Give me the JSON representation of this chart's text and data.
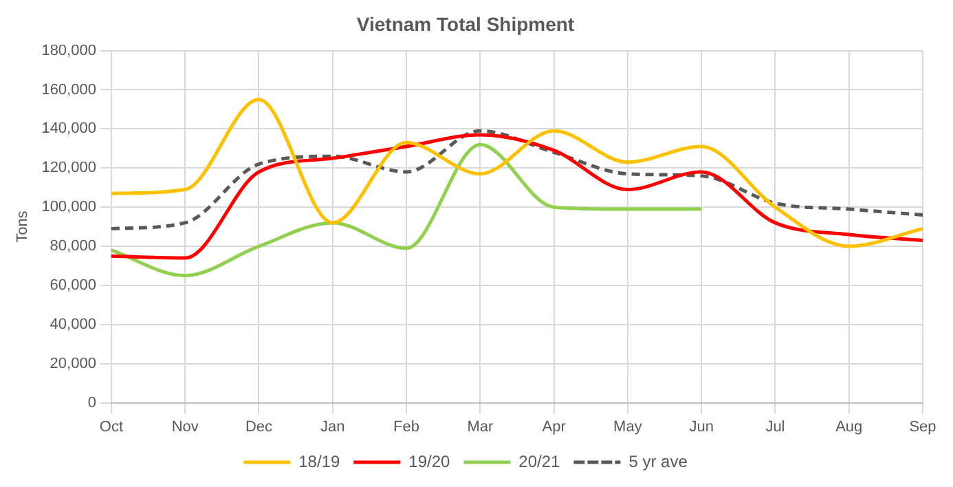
{
  "chart_data": {
    "type": "line",
    "title": "Vietnam Total Shipment",
    "ylabel": "Tons",
    "categories": [
      "Oct",
      "Nov",
      "Dec",
      "Jan",
      "Feb",
      "Mar",
      "Apr",
      "May",
      "Jun",
      "Jul",
      "Aug",
      "Sep"
    ],
    "series": [
      {
        "name": "18/19",
        "color": "#ffc000",
        "values": [
          107000,
          109000,
          155000,
          92000,
          133000,
          117000,
          139000,
          123000,
          131000,
          100000,
          80000,
          89000
        ]
      },
      {
        "name": "19/20",
        "color": "#ff0000",
        "values": [
          75000,
          74000,
          118000,
          125000,
          131000,
          137000,
          129000,
          109000,
          118000,
          92000,
          86000,
          83000
        ]
      },
      {
        "name": "20/21",
        "color": "#92d050",
        "values": [
          78000,
          65000,
          80000,
          92000,
          79000,
          132000,
          100000,
          99000,
          99000,
          null,
          null,
          null
        ]
      },
      {
        "name": "5 yr ave",
        "color": "#595959",
        "line_style": "dashed",
        "values": [
          89000,
          92000,
          122000,
          126000,
          118000,
          139000,
          128000,
          117000,
          116000,
          102000,
          99000,
          96000
        ]
      }
    ],
    "ylim": [
      0,
      180000
    ],
    "yticks": [
      0,
      {
        "value": 20000,
        "label": "20,000"
      },
      {
        "value": 40000,
        "label": "40,000"
      },
      {
        "value": 60000,
        "label": "60,000"
      },
      {
        "value": 80000,
        "label": "80,000"
      },
      {
        "value": 100000,
        "label": "100,000"
      },
      {
        "value": 120000,
        "label": "120,000"
      },
      {
        "value": 140000,
        "label": "140,000"
      },
      {
        "value": 160000,
        "label": "160,000"
      },
      {
        "value": 180000,
        "label": "180,000"
      }
    ],
    "grid": true,
    "legend": "bottom",
    "marker": "none",
    "line_style": "solid"
  }
}
